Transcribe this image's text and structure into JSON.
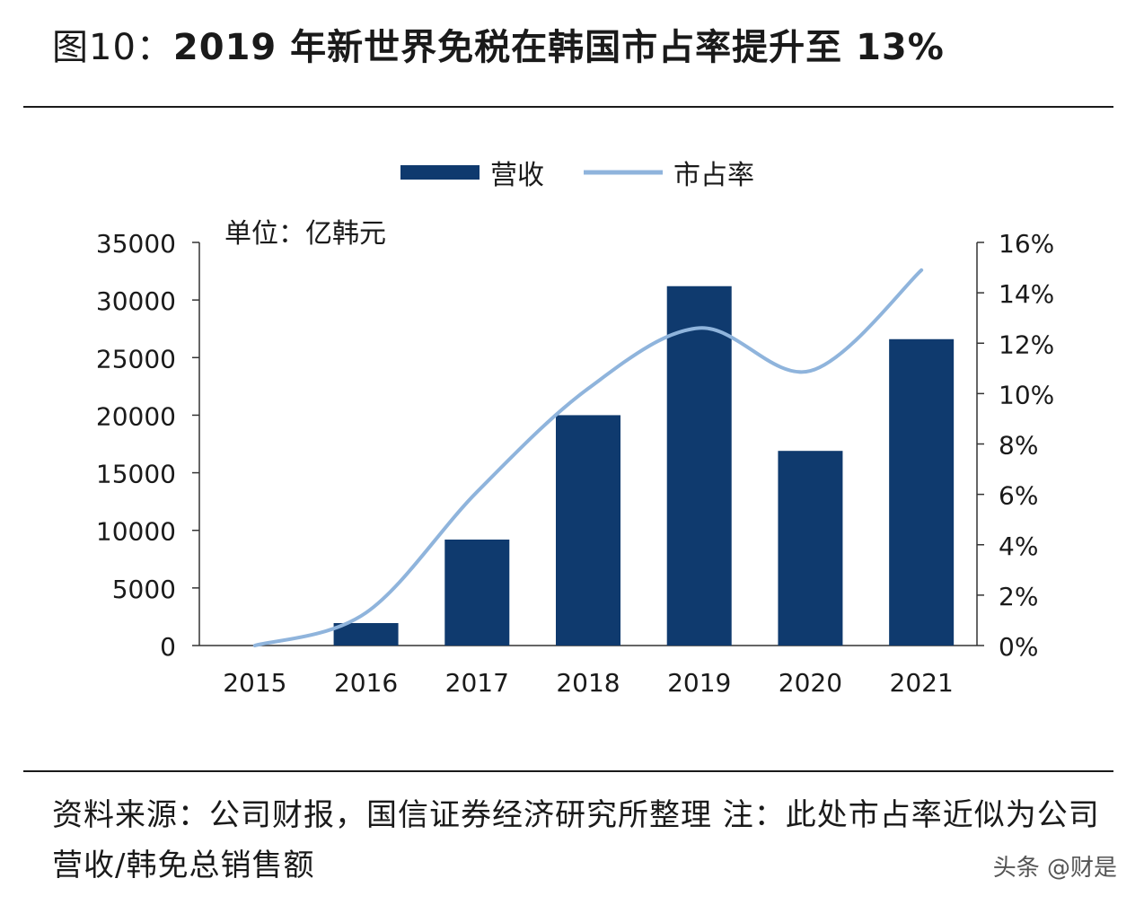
{
  "title": {
    "prefix": "图10：",
    "main": "2019 年新世界免税在韩国市占率提升至 13%"
  },
  "chart_data": {
    "type": "bar",
    "unit_label": "单位：亿韩元",
    "categories": [
      "2015",
      "2016",
      "2017",
      "2018",
      "2019",
      "2020",
      "2021"
    ],
    "series": [
      {
        "name": "营收",
        "type": "bar",
        "axis": "left",
        "color": "#0f3a6e",
        "values": [
          0,
          1950,
          9200,
          20000,
          31200,
          16900,
          26600
        ]
      },
      {
        "name": "市占率",
        "type": "line",
        "axis": "right",
        "color": "#8fb4dc",
        "values": [
          0.0,
          1.3,
          6.1,
          10.2,
          12.6,
          10.9,
          14.9
        ]
      }
    ],
    "left_axis": {
      "min": 0,
      "max": 35000,
      "ticks": [
        "0",
        "5000",
        "10000",
        "15000",
        "20000",
        "25000",
        "30000",
        "35000"
      ]
    },
    "right_axis": {
      "min": 0,
      "max": 16,
      "ticks": [
        "0%",
        "2%",
        "4%",
        "6%",
        "8%",
        "10%",
        "12%",
        "14%",
        "16%"
      ]
    },
    "legend": {
      "position": "top-center"
    },
    "grid": false
  },
  "source": {
    "text": "资料来源：公司财报，国信证券经济研究所整理 注：此处市占率近似为公司营收/韩免总销售额"
  },
  "watermark": "头条 @财是"
}
